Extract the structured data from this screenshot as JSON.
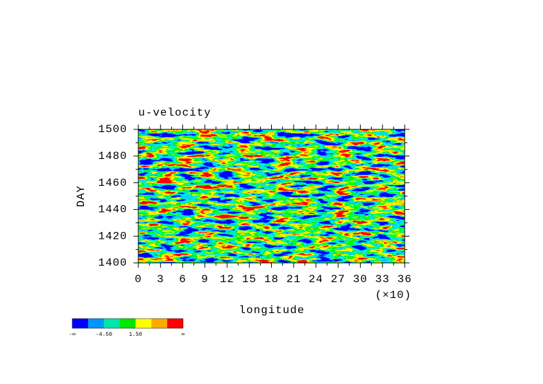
{
  "chart_data": {
    "type": "heatmap",
    "title": "u-velocity",
    "x_label": "longitude",
    "x_multiplier": "(×10)",
    "y_label": "DAY",
    "xlim": [
      0,
      36
    ],
    "xticks": [
      0,
      3,
      6,
      9,
      12,
      15,
      18,
      21,
      24,
      27,
      30,
      33,
      36
    ],
    "ylim": [
      1400,
      1500
    ],
    "yticks": [
      1400,
      1420,
      1440,
      1460,
      1480,
      1500
    ],
    "colorbar": {
      "colors": [
        "#0000ff",
        "#0096ff",
        "#00e6aa",
        "#00e600",
        "#ffff00",
        "#ffaa00",
        "#ff0000"
      ],
      "labels": [
        "-∞",
        "-4.50",
        "1.50",
        "∞"
      ]
    }
  }
}
